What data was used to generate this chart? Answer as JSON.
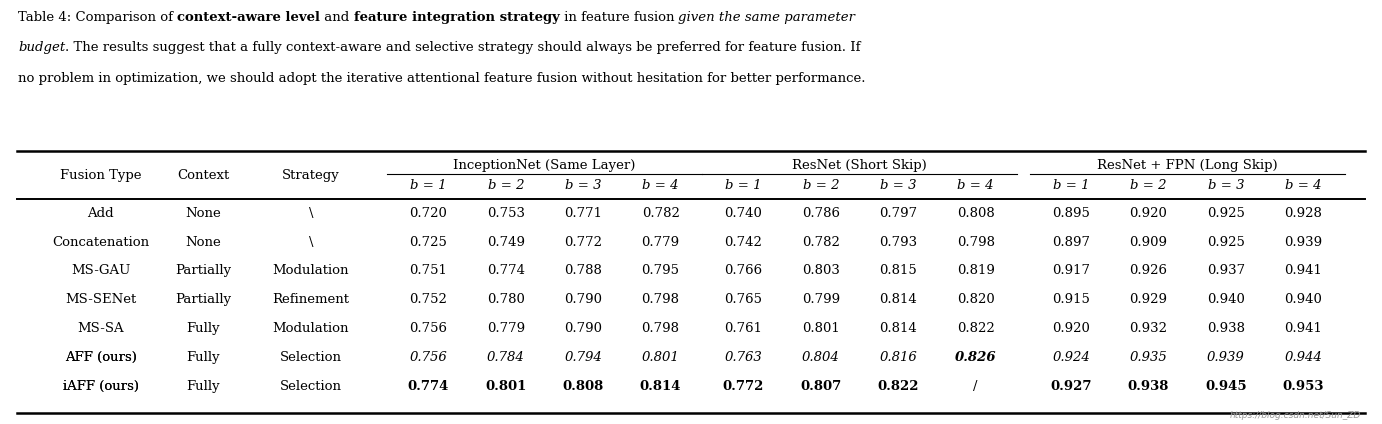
{
  "caption_line1": [
    {
      "text": "Table 4: Comparison of ",
      "bold": false,
      "italic": false
    },
    {
      "text": "context-aware level",
      "bold": true,
      "italic": false
    },
    {
      "text": " and ",
      "bold": false,
      "italic": false
    },
    {
      "text": "feature integration strategy",
      "bold": true,
      "italic": false
    },
    {
      "text": " in feature fusion ",
      "bold": false,
      "italic": false
    },
    {
      "text": "given the same parameter",
      "bold": false,
      "italic": true
    }
  ],
  "caption_line2": [
    {
      "text": "budget",
      "bold": false,
      "italic": true
    },
    {
      "text": ". The results suggest that a fully context-aware and selective strategy should always be preferred for feature fusion. If",
      "bold": false,
      "italic": false
    }
  ],
  "caption_line3": [
    {
      "text": "no problem in optimization, we should adopt the iterative attentional feature fusion without hesitation for better performance.",
      "bold": false,
      "italic": false
    }
  ],
  "group_labels": [
    "InceptionNet (Same Layer)",
    "ResNet (Short Skip)",
    "ResNet + FPN (Long Skip)"
  ],
  "col_headers_left": [
    "Fusion Type",
    "Context",
    "Strategy"
  ],
  "b_labels": [
    "b = 1",
    "b = 2",
    "b = 3",
    "b = 4",
    "b = 1",
    "b = 2",
    "b = 3",
    "b = 4",
    "b = 1",
    "b = 2",
    "b = 3",
    "b = 4"
  ],
  "rows": [
    {
      "fusion_type": "Add",
      "ft_italic": false,
      "context": "None",
      "strategy": "\\",
      "vals": [
        "0.720",
        "0.753",
        "0.771",
        "0.782",
        "0.740",
        "0.786",
        "0.797",
        "0.808",
        "0.895",
        "0.920",
        "0.925",
        "0.928"
      ],
      "bold": [
        false,
        false,
        false,
        false,
        false,
        false,
        false,
        false,
        false,
        false,
        false,
        false
      ],
      "italic": [
        false,
        false,
        false,
        false,
        false,
        false,
        false,
        false,
        false,
        false,
        false,
        false
      ]
    },
    {
      "fusion_type": "Concatenation",
      "ft_italic": false,
      "context": "None",
      "strategy": "\\",
      "vals": [
        "0.725",
        "0.749",
        "0.772",
        "0.779",
        "0.742",
        "0.782",
        "0.793",
        "0.798",
        "0.897",
        "0.909",
        "0.925",
        "0.939"
      ],
      "bold": [
        false,
        false,
        false,
        false,
        false,
        false,
        false,
        false,
        false,
        false,
        false,
        false
      ],
      "italic": [
        false,
        false,
        false,
        false,
        false,
        false,
        false,
        false,
        false,
        false,
        false,
        false
      ]
    },
    {
      "fusion_type": "MS-GAU",
      "ft_italic": false,
      "context": "Partially",
      "strategy": "Modulation",
      "vals": [
        "0.751",
        "0.774",
        "0.788",
        "0.795",
        "0.766",
        "0.803",
        "0.815",
        "0.819",
        "0.917",
        "0.926",
        "0.937",
        "0.941"
      ],
      "bold": [
        false,
        false,
        false,
        false,
        false,
        false,
        false,
        false,
        false,
        false,
        false,
        false
      ],
      "italic": [
        false,
        false,
        false,
        false,
        false,
        false,
        false,
        false,
        false,
        false,
        false,
        false
      ]
    },
    {
      "fusion_type": "MS-SENet",
      "ft_italic": false,
      "context": "Partially",
      "strategy": "Refinement",
      "vals": [
        "0.752",
        "0.780",
        "0.790",
        "0.798",
        "0.765",
        "0.799",
        "0.814",
        "0.820",
        "0.915",
        "0.929",
        "0.940",
        "0.940"
      ],
      "bold": [
        false,
        false,
        false,
        false,
        false,
        false,
        false,
        false,
        false,
        false,
        false,
        false
      ],
      "italic": [
        false,
        false,
        false,
        false,
        false,
        false,
        false,
        false,
        false,
        false,
        false,
        false
      ]
    },
    {
      "fusion_type": "MS-SA",
      "ft_italic": false,
      "context": "Fully",
      "strategy": "Modulation",
      "vals": [
        "0.756",
        "0.779",
        "0.790",
        "0.798",
        "0.761",
        "0.801",
        "0.814",
        "0.822",
        "0.920",
        "0.932",
        "0.938",
        "0.941"
      ],
      "bold": [
        false,
        false,
        false,
        false,
        false,
        false,
        false,
        false,
        false,
        false,
        false,
        false
      ],
      "italic": [
        false,
        false,
        false,
        false,
        false,
        false,
        false,
        false,
        false,
        false,
        false,
        false
      ]
    },
    {
      "fusion_type": "AFF (ours)",
      "ft_italic": true,
      "context": "Fully",
      "strategy": "Selection",
      "vals": [
        "0.756",
        "0.784",
        "0.794",
        "0.801",
        "0.763",
        "0.804",
        "0.816",
        "0.826",
        "0.924",
        "0.935",
        "0.939",
        "0.944"
      ],
      "bold": [
        false,
        false,
        false,
        false,
        false,
        false,
        false,
        true,
        false,
        false,
        false,
        false
      ],
      "italic": [
        true,
        true,
        true,
        true,
        true,
        true,
        true,
        true,
        true,
        true,
        true,
        true
      ]
    },
    {
      "fusion_type": "iAFF (ours)",
      "ft_italic": true,
      "context": "Fully",
      "strategy": "Selection",
      "vals": [
        "0.774",
        "0.801",
        "0.808",
        "0.814",
        "0.772",
        "0.807",
        "0.822",
        "/",
        "0.927",
        "0.938",
        "0.945",
        "0.953"
      ],
      "bold": [
        true,
        true,
        true,
        true,
        true,
        true,
        true,
        false,
        true,
        true,
        true,
        true
      ],
      "italic": [
        false,
        false,
        false,
        false,
        false,
        false,
        false,
        false,
        false,
        false,
        false,
        false
      ]
    }
  ],
  "bg_color": "#ffffff",
  "font_size": 9.5,
  "caption_font_size": 9.5,
  "watermark": "https://blog.csdn.net/Sun_ZD"
}
